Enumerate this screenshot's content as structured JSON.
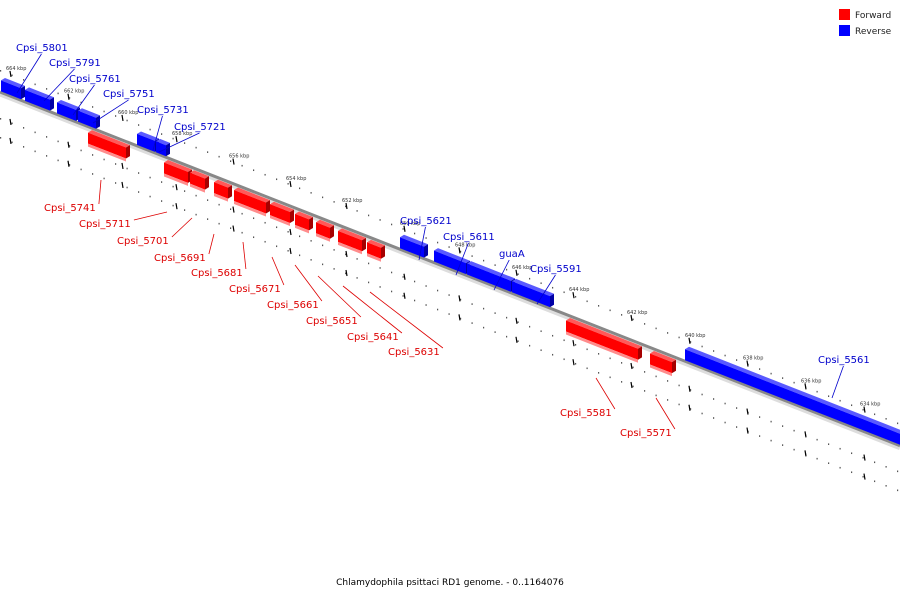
{
  "legend": [
    {
      "label": "Forward",
      "color": "#ff0000"
    },
    {
      "label": "Reverse",
      "color": "#0000ff"
    }
  ],
  "colors": {
    "forward": "#ff0000",
    "forward_label": "#dd0000",
    "reverse": "#0000ff",
    "reverse_label": "#0000cc",
    "backbone": "#888888"
  },
  "caption": "Chlamydophila psittaci RD1 genome. - 0..1164076",
  "scale": {
    "unit": "kbp",
    "ticks": [
      664,
      662,
      660,
      658,
      656,
      654,
      652,
      650,
      648,
      646,
      644,
      642,
      640,
      638,
      636,
      634
    ],
    "tick_labels": [
      "664 kbp",
      "662 kbp",
      "660 kbp",
      "658 kbp",
      "656 kbp",
      "654 kbp",
      "652 kbp",
      "650 kbp",
      "648 kbp",
      "646 kbp",
      "644 kbp",
      "642 kbp",
      "640 kbp",
      "638 kbp",
      "636 kbp",
      "634 kbp"
    ]
  },
  "genes": [
    {
      "name": "Cpsi_5801",
      "strand": "reverse"
    },
    {
      "name": "Cpsi_5791",
      "strand": "reverse"
    },
    {
      "name": "Cpsi_5761",
      "strand": "reverse"
    },
    {
      "name": "Cpsi_5751",
      "strand": "reverse"
    },
    {
      "name": "Cpsi_5731",
      "strand": "reverse"
    },
    {
      "name": "Cpsi_5721",
      "strand": "reverse"
    },
    {
      "name": "Cpsi_5741",
      "strand": "forward"
    },
    {
      "name": "Cpsi_5711",
      "strand": "forward"
    },
    {
      "name": "Cpsi_5701",
      "strand": "forward"
    },
    {
      "name": "Cpsi_5691",
      "strand": "forward"
    },
    {
      "name": "Cpsi_5681",
      "strand": "forward"
    },
    {
      "name": "Cpsi_5671",
      "strand": "forward"
    },
    {
      "name": "Cpsi_5661",
      "strand": "forward"
    },
    {
      "name": "Cpsi_5651",
      "strand": "forward"
    },
    {
      "name": "Cpsi_5641",
      "strand": "forward"
    },
    {
      "name": "Cpsi_5631",
      "strand": "forward"
    },
    {
      "name": "Cpsi_5621",
      "strand": "reverse"
    },
    {
      "name": "Cpsi_5611",
      "strand": "reverse"
    },
    {
      "name": "guaA",
      "strand": "reverse"
    },
    {
      "name": "Cpsi_5591",
      "strand": "reverse"
    },
    {
      "name": "Cpsi_5581",
      "strand": "forward"
    },
    {
      "name": "Cpsi_5571",
      "strand": "forward"
    },
    {
      "name": "Cpsi_5561",
      "strand": "reverse"
    }
  ]
}
